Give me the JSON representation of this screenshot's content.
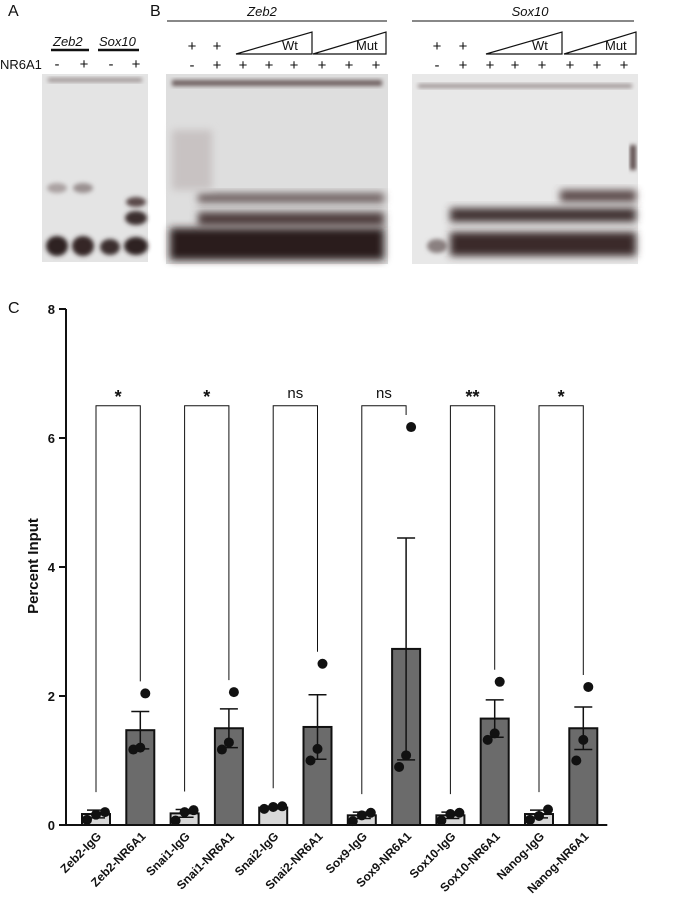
{
  "panels": {
    "a": "A",
    "b": "B",
    "c": "C"
  },
  "panel_a": {
    "genes": [
      "Zeb2",
      "Sox10"
    ],
    "row_label": "NR6A1",
    "signs": [
      "-",
      "+",
      "-",
      "+"
    ]
  },
  "panel_b": {
    "genes": [
      "Zeb2",
      "Sox10"
    ],
    "row1_signs": [
      "+",
      "+"
    ],
    "row2_signs": [
      "-",
      "+",
      "+",
      "+",
      "+",
      "+",
      "+",
      "+"
    ],
    "wt_label": "Wt",
    "mut_label": "Mut"
  },
  "colors": {
    "igg_bar": "#d8d8d8",
    "nr6a1_bar": "#6b6b6b",
    "gel_bg": "#e2e2e2",
    "band": "#3a2c2c"
  },
  "chart_data": {
    "type": "bar",
    "ylabel": "Percent Input",
    "ylim": [
      0,
      8
    ],
    "yticks": [
      0,
      2,
      4,
      6,
      8
    ],
    "categories": [
      "Zeb2-IgG",
      "Zeb2-NR6A1",
      "Snai1-IgG",
      "Snai1-NR6A1",
      "Snai2-IgG",
      "Snai2-NR6A1",
      "Sox9-IgG",
      "Sox9-NR6A1",
      "Sox10-IgG",
      "Sox10-NR6A1",
      "Nanog-IgG",
      "Nanog-NR6A1"
    ],
    "values": [
      0.17,
      1.47,
      0.18,
      1.5,
      0.27,
      1.52,
      0.15,
      2.73,
      0.15,
      1.65,
      0.17,
      1.5
    ],
    "errors": [
      0.06,
      0.29,
      0.06,
      0.3,
      0.02,
      0.5,
      0.05,
      1.72,
      0.05,
      0.29,
      0.06,
      0.33
    ],
    "points": [
      [
        0.08,
        0.16,
        0.2
      ],
      [
        1.17,
        1.2,
        2.04
      ],
      [
        0.07,
        0.2,
        0.23
      ],
      [
        1.17,
        1.28,
        2.06
      ],
      [
        0.25,
        0.28,
        0.29
      ],
      [
        1.0,
        1.18,
        2.5
      ],
      [
        0.06,
        0.15,
        0.19
      ],
      [
        0.9,
        1.08,
        6.17
      ],
      [
        0.07,
        0.17,
        0.19
      ],
      [
        1.32,
        1.42,
        2.22
      ],
      [
        0.08,
        0.14,
        0.24
      ],
      [
        1.0,
        1.32,
        2.14
      ]
    ],
    "comparisons": [
      {
        "pair": [
          0,
          1
        ],
        "label": "*"
      },
      {
        "pair": [
          2,
          3
        ],
        "label": "*"
      },
      {
        "pair": [
          4,
          5
        ],
        "label": "ns"
      },
      {
        "pair": [
          6,
          7
        ],
        "label": "ns"
      },
      {
        "pair": [
          8,
          9
        ],
        "label": "**"
      },
      {
        "pair": [
          10,
          11
        ],
        "label": "*"
      }
    ],
    "bracket_level": 6.5
  }
}
